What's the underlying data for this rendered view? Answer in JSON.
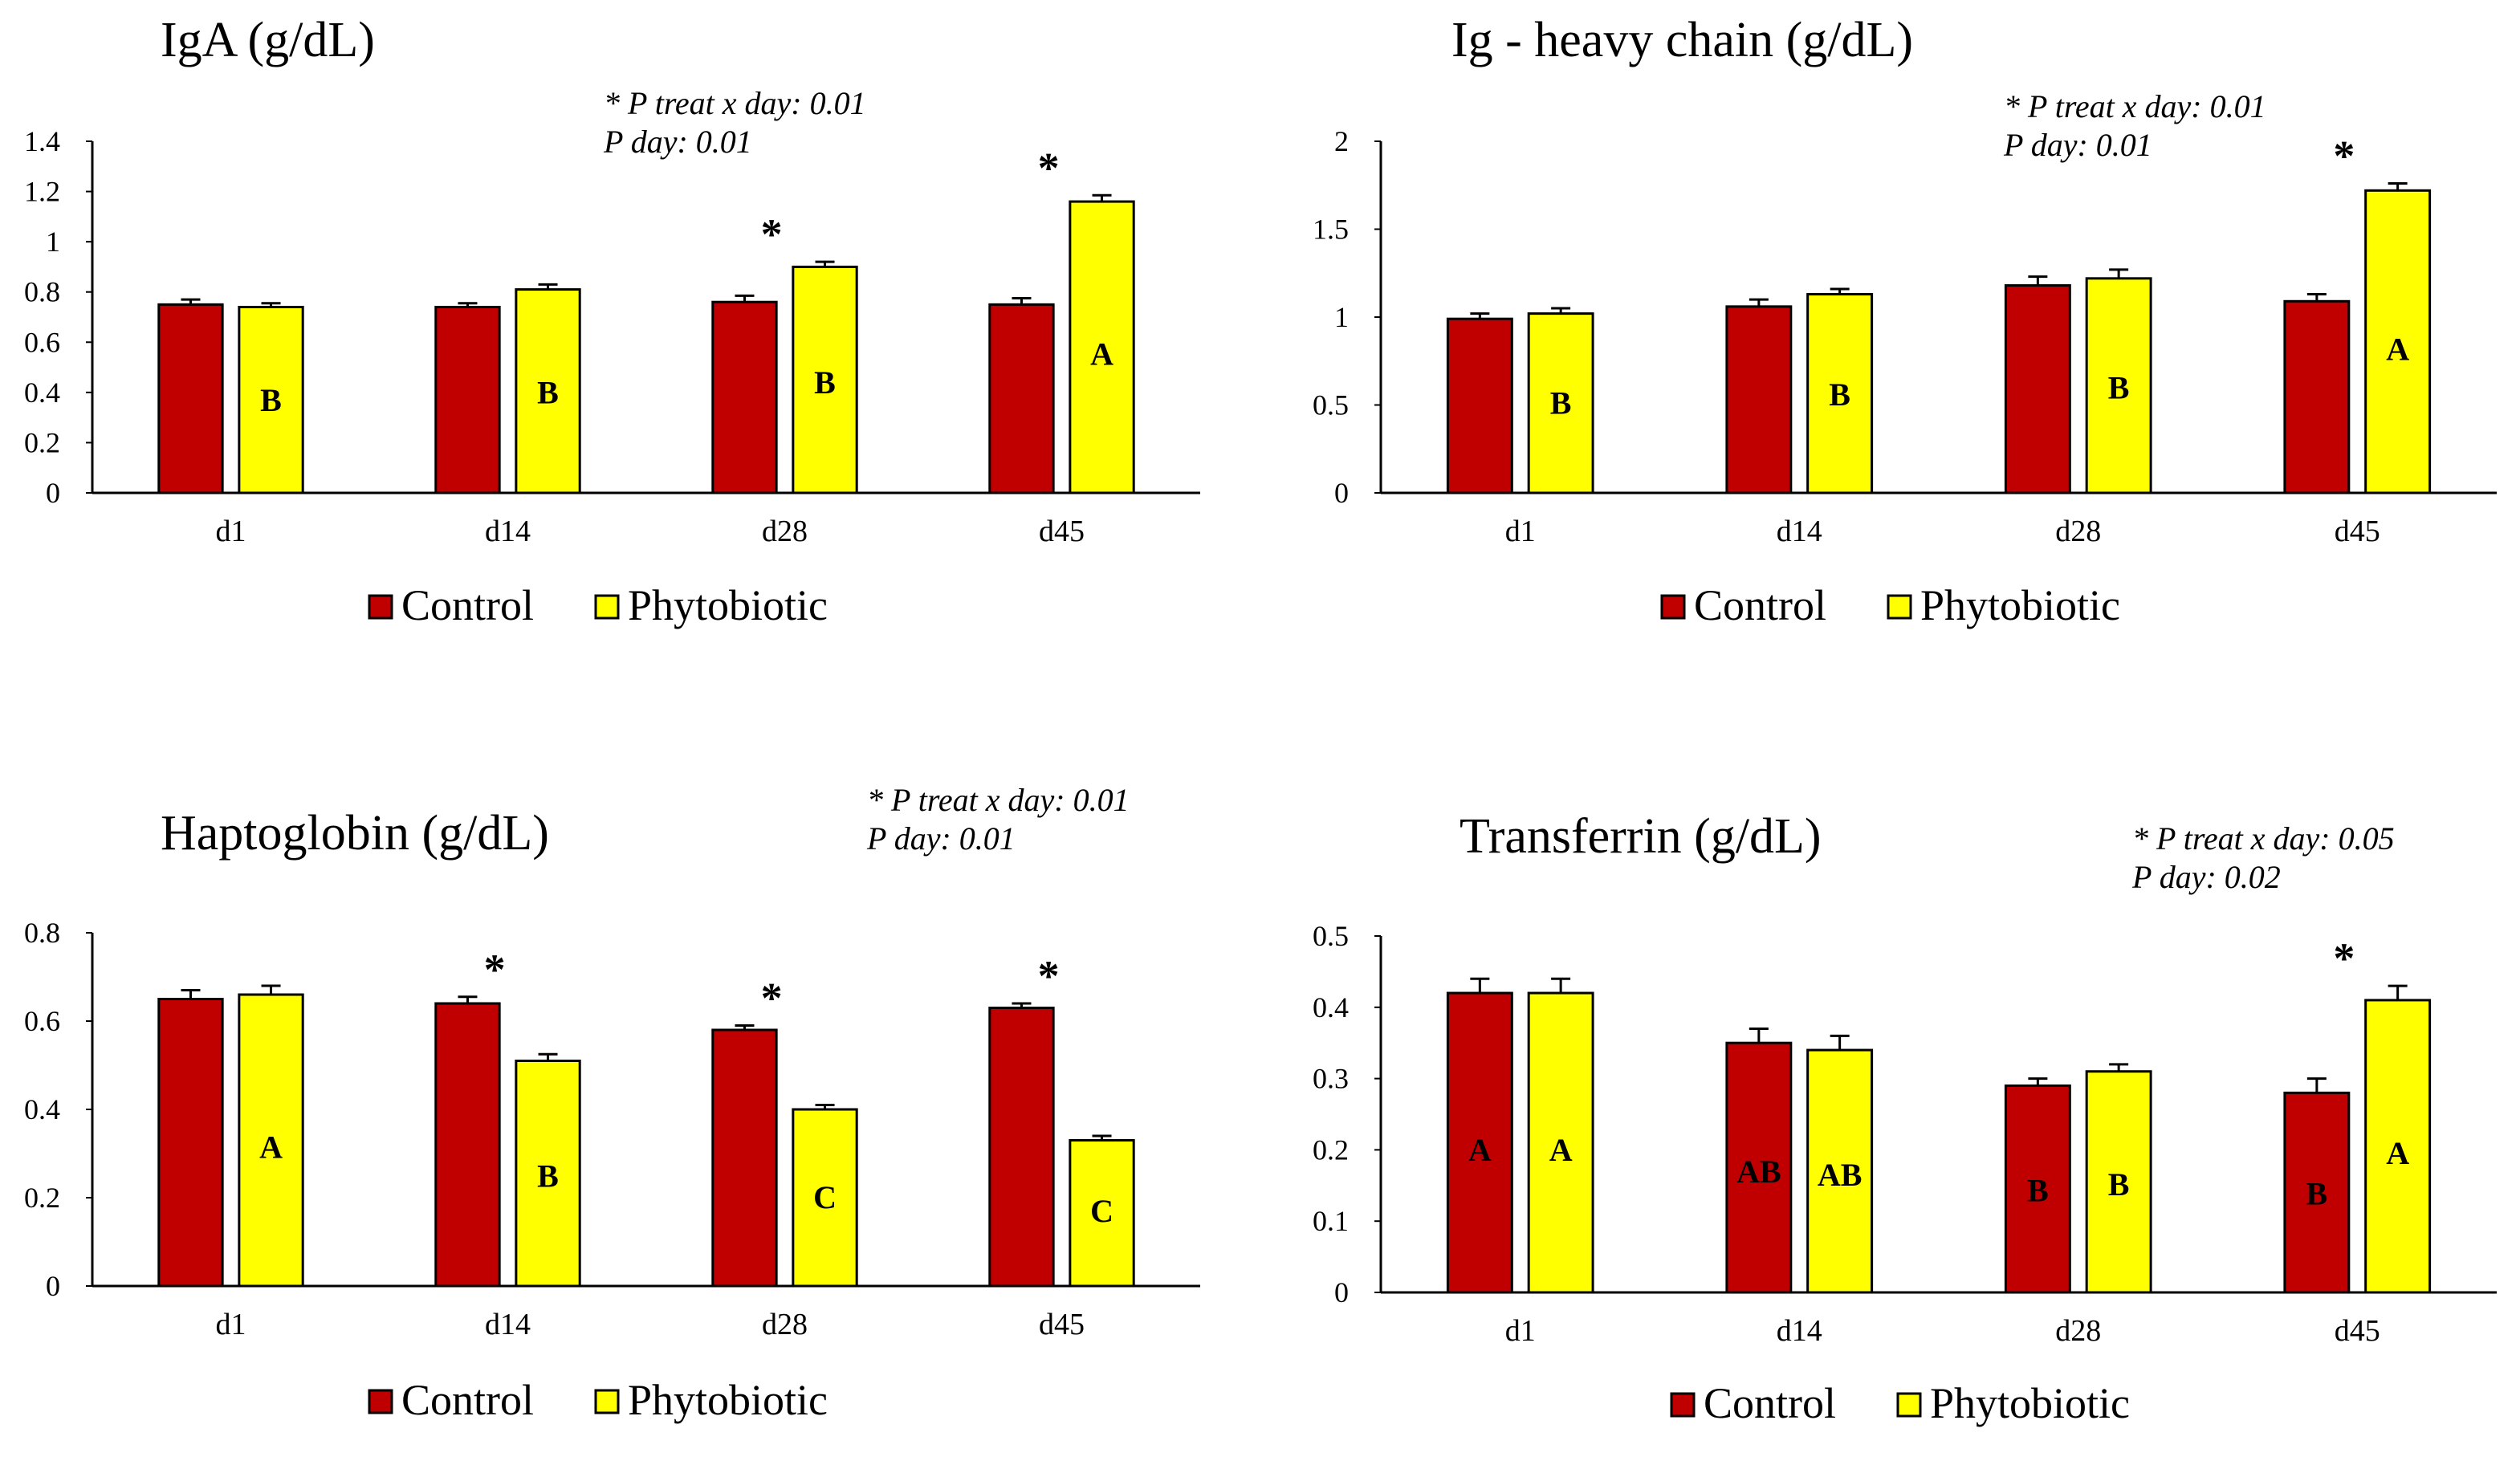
{
  "colors": {
    "control": "#C00000",
    "phytobiotic": "#FFFF00",
    "outline": "#000000"
  },
  "chart_data": [
    {
      "type": "bar",
      "title": "IgA (g/dL)",
      "annotations": [
        "* P treat x day: 0.01",
        "P day: 0.01"
      ],
      "categories": [
        "d1",
        "d14",
        "d28",
        "d45"
      ],
      "ylim": [
        0,
        1.4
      ],
      "yticks": [
        0,
        0.2,
        0.4,
        0.6,
        0.8,
        1,
        1.2,
        1.4
      ],
      "legend_position": "bottom",
      "series": [
        {
          "name": "Control",
          "color": "#C00000",
          "values": [
            0.75,
            0.74,
            0.76,
            0.75
          ],
          "errors": [
            0.02,
            0.015,
            0.025,
            0.025
          ],
          "letters": [
            "",
            "",
            "",
            ""
          ]
        },
        {
          "name": "Phytobiotic",
          "color": "#FFFF00",
          "values": [
            0.74,
            0.81,
            0.9,
            1.16
          ],
          "errors": [
            0.015,
            0.02,
            0.02,
            0.025
          ],
          "letters": [
            "B",
            "B",
            "B",
            "A"
          ]
        }
      ],
      "stars": [
        "",
        "",
        "*",
        "*"
      ]
    },
    {
      "type": "bar",
      "title": "Ig - heavy chain (g/dL)",
      "annotations": [
        "* P treat x day: 0.01",
        "P day: 0.01"
      ],
      "categories": [
        "d1",
        "d14",
        "d28",
        "d45"
      ],
      "ylim": [
        0,
        2
      ],
      "yticks": [
        0,
        0.5,
        1,
        1.5,
        2
      ],
      "legend_position": "bottom",
      "series": [
        {
          "name": "Control",
          "color": "#C00000",
          "values": [
            0.99,
            1.06,
            1.18,
            1.09
          ],
          "errors": [
            0.03,
            0.04,
            0.05,
            0.04
          ],
          "letters": [
            "",
            "",
            "",
            ""
          ]
        },
        {
          "name": "Phytobiotic",
          "color": "#FFFF00",
          "values": [
            1.02,
            1.13,
            1.22,
            1.72
          ],
          "errors": [
            0.03,
            0.03,
            0.05,
            0.04
          ],
          "letters": [
            "B",
            "B",
            "B",
            "A"
          ]
        }
      ],
      "stars": [
        "",
        "",
        "",
        "*"
      ]
    },
    {
      "type": "bar",
      "title": "Haptoglobin (g/dL)",
      "annotations": [
        "* P treat x day: 0.01",
        "P day: 0.01"
      ],
      "categories": [
        "d1",
        "d14",
        "d28",
        "d45"
      ],
      "ylim": [
        0,
        0.8
      ],
      "yticks": [
        0,
        0.2,
        0.4,
        0.6,
        0.8
      ],
      "legend_position": "bottom",
      "series": [
        {
          "name": "Control",
          "color": "#C00000",
          "values": [
            0.65,
            0.64,
            0.58,
            0.63
          ],
          "errors": [
            0.02,
            0.015,
            0.01,
            0.01
          ],
          "letters": [
            "",
            "",
            "",
            ""
          ]
        },
        {
          "name": "Phytobiotic",
          "color": "#FFFF00",
          "values": [
            0.66,
            0.51,
            0.4,
            0.33
          ],
          "errors": [
            0.02,
            0.015,
            0.01,
            0.01
          ],
          "letters": [
            "A",
            "B",
            "C",
            "C"
          ]
        }
      ],
      "stars": [
        "",
        "*",
        "*",
        "*"
      ]
    },
    {
      "type": "bar",
      "title": "Transferrin (g/dL)",
      "annotations": [
        "* P treat x day: 0.05",
        "P day: 0.02"
      ],
      "categories": [
        "d1",
        "d14",
        "d28",
        "d45"
      ],
      "ylim": [
        0,
        0.5
      ],
      "yticks": [
        0,
        0.1,
        0.2,
        0.3,
        0.4,
        0.5
      ],
      "legend_position": "bottom",
      "series": [
        {
          "name": "Control",
          "color": "#C00000",
          "values": [
            0.42,
            0.35,
            0.29,
            0.28
          ],
          "errors": [
            0.02,
            0.02,
            0.01,
            0.02
          ],
          "letters": [
            "A",
            "AB",
            "B",
            "B"
          ]
        },
        {
          "name": "Phytobiotic",
          "color": "#FFFF00",
          "values": [
            0.42,
            0.34,
            0.31,
            0.41
          ],
          "errors": [
            0.02,
            0.02,
            0.01,
            0.02
          ],
          "letters": [
            "A",
            "AB",
            "B",
            "A"
          ]
        }
      ],
      "stars": [
        "",
        "",
        "",
        "*"
      ]
    }
  ]
}
